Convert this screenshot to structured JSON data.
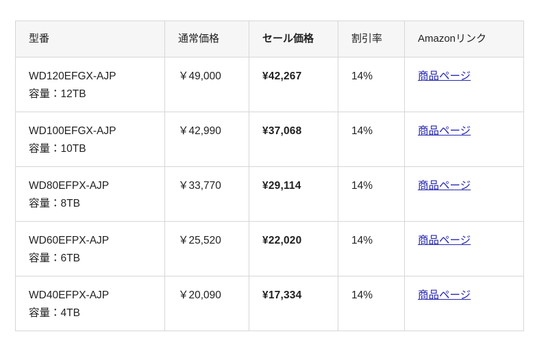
{
  "table": {
    "columns": [
      {
        "label": "型番"
      },
      {
        "label": "通常価格"
      },
      {
        "label": "セール価格"
      },
      {
        "label": "割引率"
      },
      {
        "label": "Amazonリンク"
      }
    ],
    "rows": [
      {
        "model": "WD120EFGX-AJP",
        "capacity": "容量：12TB",
        "regular_price": "￥49,000",
        "sale_price": "¥42,267",
        "discount": "14%",
        "link_label": "商品ページ"
      },
      {
        "model": "WD100EFGX-AJP",
        "capacity": "容量：10TB",
        "regular_price": "￥42,990",
        "sale_price": "¥37,068",
        "discount": "14%",
        "link_label": "商品ページ"
      },
      {
        "model": "WD80EFPX-AJP",
        "capacity": "容量：8TB",
        "regular_price": "￥33,770",
        "sale_price": "¥29,114",
        "discount": "14%",
        "link_label": "商品ページ"
      },
      {
        "model": "WD60EFPX-AJP",
        "capacity": "容量：6TB",
        "regular_price": "￥25,520",
        "sale_price": "¥22,020",
        "discount": "14%",
        "link_label": "商品ページ"
      },
      {
        "model": "WD40EFPX-AJP",
        "capacity": "容量：4TB",
        "regular_price": "￥20,090",
        "sale_price": "¥17,334",
        "discount": "14%",
        "link_label": "商品ページ"
      }
    ]
  },
  "colors": {
    "link": "#2525b2",
    "header_background": "#f6f6f6",
    "border": "#d6d6d6",
    "text": "#1f1f1f"
  }
}
